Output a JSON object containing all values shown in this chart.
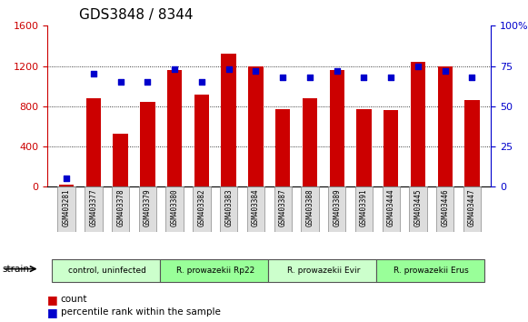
{
  "title": "GDS3848 / 8344",
  "samples": [
    "GSM403281",
    "GSM403377",
    "GSM403378",
    "GSM403379",
    "GSM403380",
    "GSM403382",
    "GSM403383",
    "GSM403384",
    "GSM403387",
    "GSM403388",
    "GSM403389",
    "GSM403391",
    "GSM403444",
    "GSM403445",
    "GSM403446",
    "GSM403447"
  ],
  "counts": [
    20,
    880,
    530,
    840,
    1160,
    920,
    1320,
    1200,
    770,
    880,
    1160,
    770,
    760,
    1240,
    1200,
    860
  ],
  "percentiles": [
    5,
    70,
    65,
    65,
    73,
    65,
    73,
    72,
    68,
    68,
    72,
    68,
    68,
    75,
    72,
    68
  ],
  "bar_color": "#cc0000",
  "dot_color": "#0000cc",
  "left_ylim": [
    0,
    1600
  ],
  "right_ylim": [
    0,
    100
  ],
  "left_yticks": [
    0,
    400,
    800,
    1200,
    1600
  ],
  "right_yticks": [
    0,
    25,
    50,
    75,
    100
  ],
  "right_yticklabels": [
    "0",
    "25",
    "50",
    "75",
    "100%"
  ],
  "groups": [
    {
      "label": "control, uninfected",
      "start": 0,
      "end": 4,
      "color": "#ccffcc"
    },
    {
      "label": "R. prowazekii Rp22",
      "start": 4,
      "end": 8,
      "color": "#99ff99"
    },
    {
      "label": "R. prowazekii Evir",
      "start": 8,
      "end": 12,
      "color": "#ccffcc"
    },
    {
      "label": "R. prowazekii Erus",
      "start": 12,
      "end": 16,
      "color": "#99ff99"
    }
  ],
  "strain_label": "strain",
  "legend_count_label": "count",
  "legend_percentile_label": "percentile rank within the sample",
  "bg_color": "#ffffff",
  "plot_bg_color": "#ffffff",
  "title_fontsize": 11,
  "axis_label_color_left": "#cc0000",
  "axis_label_color_right": "#0000cc",
  "grid_color": "#000000",
  "tick_label_bg": "#dddddd"
}
